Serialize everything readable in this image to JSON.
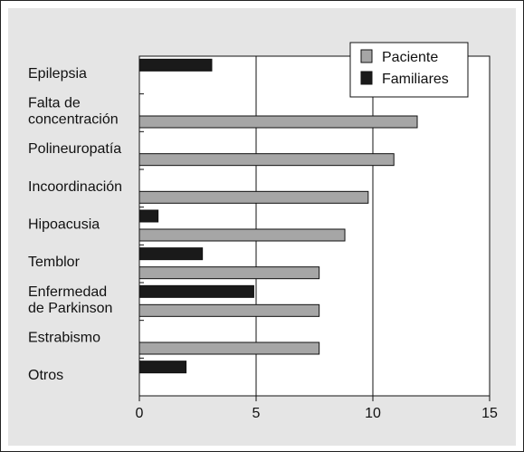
{
  "chart_data": {
    "type": "bar",
    "orientation": "horizontal",
    "categories": [
      [
        "Epilepsia"
      ],
      [
        "Falta de",
        "concentración"
      ],
      [
        "Polineuropatía"
      ],
      [
        "Incoordinación"
      ],
      [
        "Hipoacusia"
      ],
      [
        "Temblor"
      ],
      [
        "Enfermedad",
        "de Parkinson"
      ],
      [
        "Estrabismo"
      ],
      [
        "Otros"
      ]
    ],
    "series": [
      {
        "name": "Paciente",
        "color": "#a6a6a6",
        "values": [
          0,
          11.9,
          10.9,
          9.8,
          8.8,
          7.7,
          7.7,
          7.7,
          0
        ]
      },
      {
        "name": "Familiares",
        "color": "#1a1a1a",
        "values": [
          3.1,
          0,
          0,
          0,
          0.8,
          2.7,
          4.9,
          0,
          2.0
        ]
      }
    ],
    "xlim": [
      0,
      15
    ],
    "xticks": [
      0,
      5,
      10,
      15
    ],
    "grid": "vertical",
    "legend": "top-right",
    "title": "",
    "xlabel": "",
    "ylabel": ""
  }
}
